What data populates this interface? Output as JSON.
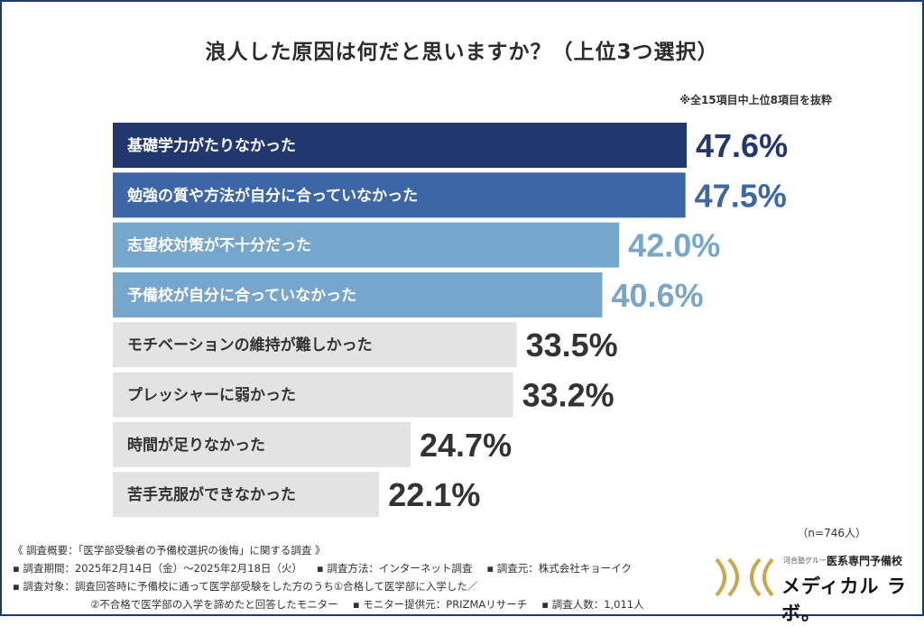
{
  "title": "浪人した原因は何だと思いますか？（上位3つ選択）",
  "note": "※全15項目中上位8項目を抜粋",
  "n_label": "（n=746人）",
  "chart_data": {
    "type": "bar",
    "orientation": "horizontal",
    "unit": "%",
    "categories": [
      "基礎学力がたりなかった",
      "勉強の質や方法が自分に合っていなかった",
      "志望校対策が不十分だった",
      "予備校が自分に合っていなかった",
      "モチベーションの維持が難しかった",
      "プレッシャーに弱かった",
      "時間が足りなかった",
      "苦手克服ができなかった"
    ],
    "values": [
      47.6,
      47.5,
      42.0,
      40.6,
      33.5,
      33.2,
      24.7,
      22.1
    ],
    "value_labels": [
      "47.6%",
      "47.5%",
      "42.0%",
      "40.6%",
      "33.5%",
      "33.2%",
      "24.7%",
      "22.1%"
    ],
    "bar_colors": [
      "#21376e",
      "#3d66a6",
      "#77a6cc",
      "#77a6cc",
      "#e3e3e3",
      "#e3e3e3",
      "#e3e3e3",
      "#e3e3e3"
    ],
    "label_colors": [
      "#ffffff",
      "#ffffff",
      "#ffffff",
      "#ffffff",
      "#333333",
      "#333333",
      "#333333",
      "#333333"
    ],
    "value_colors": [
      "#21376e",
      "#3d66a6",
      "#77a6cc",
      "#77a6cc",
      "#333333",
      "#333333",
      "#333333",
      "#333333"
    ],
    "xlim": [
      0,
      47.6
    ]
  },
  "footer": {
    "line1": "《 調査概要：「医学部受験者の予備校選択の後悔」に関する調査 》",
    "period": "▪ 調査期間：2025年2月14日（金）〜2025年2月18日（火）",
    "method": "▪ 調査方法：インターネット調査",
    "org": "▪ 調査元：株式会社キョーイク",
    "target": "▪ 調査対象：調査回答時に予備校に通って医学部受験をした方のうち①合格して医学部に入学した／",
    "target2": "②不合格で医学部の入学を諦めたと回答したモニター",
    "provider": "▪ モニター提供元：PRIZMAリサーチ",
    "count": "▪ 調査人数：1,011人"
  },
  "logo": {
    "group": "河合塾グループ",
    "school": "医系専門予備校",
    "brand": "メディカル ラボ。",
    "colors": {
      "gold": "#c9a84c"
    }
  }
}
